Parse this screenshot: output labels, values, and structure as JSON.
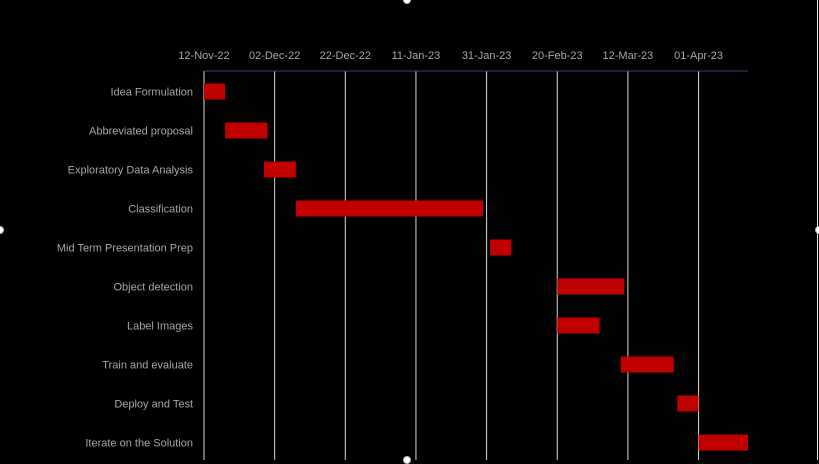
{
  "chart_data": {
    "type": "bar",
    "orientation": "horizontal-gantt",
    "title": "",
    "xlabel": "",
    "ylabel": "",
    "x_axis_position": "top",
    "xlim": [
      "2022-11-12",
      "2023-04-15"
    ],
    "x_ticks": [
      "12-Nov-22",
      "02-Dec-22",
      "22-Dec-22",
      "11-Jan-23",
      "31-Jan-23",
      "20-Feb-23",
      "12-Mar-23",
      "01-Apr-23"
    ],
    "x_tick_values": [
      "2022-11-12",
      "2022-12-02",
      "2022-12-22",
      "2023-01-11",
      "2023-01-31",
      "2023-02-20",
      "2023-03-12",
      "2023-04-01"
    ],
    "grid": "vertical",
    "legend": "none",
    "bar_color": "#c00000",
    "categories": [
      "Idea Formulation",
      "Abbreviated proposal",
      "Exploratory Data Analysis",
      "Classification",
      "Mid Term Presentation Prep",
      "Object detection",
      "Label Images",
      "Train and evaluate",
      "Deploy and Test",
      "Iterate on the Solution"
    ],
    "tasks": [
      {
        "start": "2022-11-12",
        "end": "2022-11-18"
      },
      {
        "start": "2022-11-18",
        "end": "2022-11-30"
      },
      {
        "start": "2022-11-29",
        "end": "2022-12-08"
      },
      {
        "start": "2022-12-08",
        "end": "2023-01-30"
      },
      {
        "start": "2023-02-01",
        "end": "2023-02-07"
      },
      {
        "start": "2023-02-20",
        "end": "2023-03-11"
      },
      {
        "start": "2023-02-20",
        "end": "2023-03-04"
      },
      {
        "start": "2023-03-10",
        "end": "2023-03-25"
      },
      {
        "start": "2023-03-26",
        "end": "2023-04-01"
      },
      {
        "start": "2023-04-01",
        "end": "2023-04-15"
      }
    ]
  }
}
